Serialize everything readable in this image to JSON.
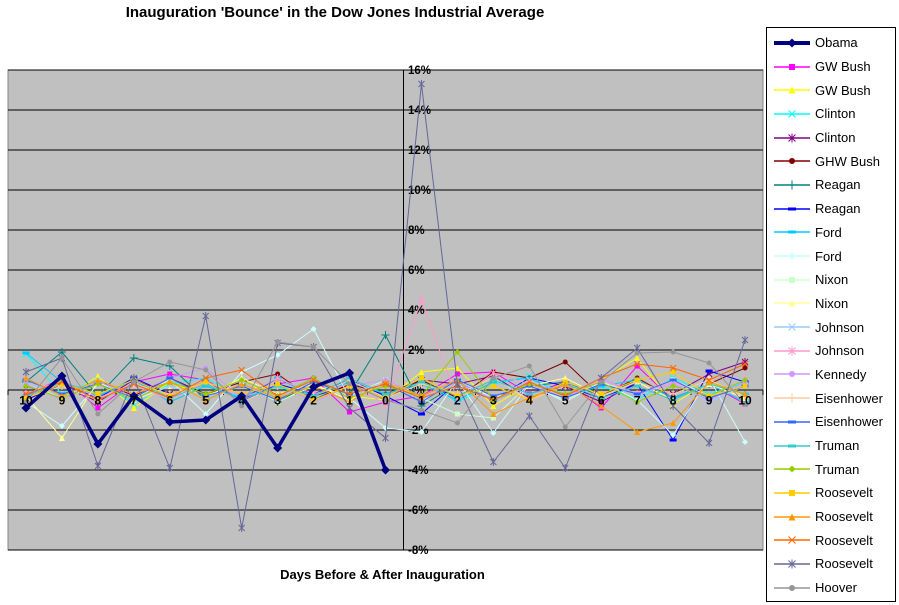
{
  "chart_data": {
    "type": "line",
    "title": "Inauguration 'Bounce' in the Dow Jones Industrial Average",
    "xlabel": "Days Before & After Inauguration",
    "ylabel": "",
    "ylim": [
      -8,
      16
    ],
    "grid": true,
    "legend_position": "right",
    "plot_bg_color": "#C0C0C0",
    "gridline_color": "#000000",
    "days": [
      -10,
      -9,
      -8,
      -7,
      -6,
      -5,
      -4,
      -3,
      -2,
      -1,
      0,
      1,
      2,
      3,
      4,
      5,
      6,
      7,
      8,
      9,
      10
    ],
    "x_tick_labels": [
      "10",
      "9",
      "8",
      "7",
      "6",
      "5",
      "4",
      "3",
      "2",
      "1",
      "0",
      "1",
      "2",
      "3",
      "4",
      "5",
      "6",
      "7",
      "8",
      "9",
      "10"
    ],
    "y_tick_values": [
      16,
      14,
      12,
      10,
      8,
      6,
      4,
      2,
      0,
      -2,
      -4,
      -6,
      -8
    ],
    "y_tick_labels": [
      "16%",
      "14%",
      "12%",
      "10%",
      "8%",
      "6%",
      "4%",
      "2%",
      "0%",
      "-2%",
      "-4%",
      "-6%",
      "-8%"
    ],
    "series": [
      {
        "name": "Obama",
        "color": "#000080",
        "marker": "diamond",
        "line_width": 3.5,
        "values": [
          -0.9,
          0.7,
          -2.7,
          -0.3,
          -1.6,
          -1.5,
          -0.3,
          -2.9,
          0.15,
          0.85,
          -4.0,
          null,
          null,
          null,
          null,
          null,
          null,
          null,
          null,
          null,
          null
        ]
      },
      {
        "name": "GW Bush",
        "color": "#FF00FF",
        "marker": "square",
        "line_width": 1,
        "values": [
          -0.3,
          0.6,
          -0.9,
          0.4,
          0.8,
          0.5,
          -0.5,
          0.3,
          0.6,
          -1.1,
          -0.6,
          -0.3,
          0.8,
          0.9,
          -0.2,
          0.4,
          -0.9,
          1.2,
          -0.5,
          0.3,
          -0.7
        ]
      },
      {
        "name": "GW Bush",
        "color": "#FFFF00",
        "marker": "triangle",
        "line_width": 1,
        "values": [
          0.3,
          -0.5,
          0.7,
          -0.9,
          0.4,
          -0.3,
          0.6,
          -0.6,
          0.25,
          -0.3,
          -0.5,
          0.9,
          1.1,
          -0.8,
          0.3,
          -0.4,
          0.5,
          1.6,
          -0.7,
          0.4,
          -0.3
        ]
      },
      {
        "name": "Clinton",
        "color": "#00FFFF",
        "marker": "x",
        "line_width": 1,
        "values": [
          1.8,
          -0.2,
          0.5,
          -0.7,
          0.3,
          0.6,
          -0.4,
          0.2,
          -0.5,
          0.4,
          -0.2,
          0.5,
          -0.6,
          0.3,
          0.7,
          -0.3,
          0.2,
          -0.5,
          0.6,
          -0.2,
          0.4
        ]
      },
      {
        "name": "Clinton",
        "color": "#800080",
        "marker": "star",
        "line_width": 1,
        "values": [
          -0.4,
          0.3,
          -0.6,
          0.5,
          -0.2,
          0.4,
          -0.5,
          0.6,
          -0.3,
          0.2,
          -0.4,
          0.5,
          0.3,
          0.7,
          -0.4,
          0.2,
          -0.6,
          0.4,
          -0.2,
          0.8,
          1.4
        ]
      },
      {
        "name": "GHW Bush",
        "color": "#800000",
        "marker": "circle",
        "line_width": 1,
        "values": [
          0.2,
          -0.4,
          0.5,
          -0.3,
          0.6,
          -0.2,
          0.4,
          0.8,
          -0.5,
          0.3,
          -0.2,
          0.5,
          -0.4,
          0.9,
          0.6,
          1.4,
          -0.3,
          0.6,
          -0.4,
          0.3,
          1.1
        ]
      },
      {
        "name": "Reagan",
        "color": "#008080",
        "marker": "plus",
        "line_width": 1,
        "values": [
          0.4,
          1.9,
          -0.3,
          1.6,
          1.2,
          -0.5,
          0.3,
          -0.6,
          0.4,
          -0.2,
          2.75,
          -0.8,
          0.3,
          -0.5,
          0.2,
          0.4,
          -0.3,
          0.5,
          -0.4,
          0.3,
          -0.2
        ]
      },
      {
        "name": "Reagan",
        "color": "#0000FF",
        "marker": "dash",
        "line_width": 1,
        "values": [
          -0.5,
          0.3,
          -0.4,
          0.6,
          -0.2,
          0.4,
          -0.6,
          0.3,
          -0.2,
          0.5,
          -0.3,
          -1.2,
          0.4,
          -0.5,
          0.6,
          0.2,
          -0.4,
          0.3,
          -2.5,
          0.95,
          0.4
        ]
      },
      {
        "name": "Ford",
        "color": "#00CCFF",
        "marker": "dash",
        "line_width": 1,
        "values": [
          1.85,
          0.4,
          -0.3,
          0.5,
          -0.6,
          0.2,
          -0.4,
          0.6,
          -0.3,
          0.4,
          -0.2,
          0.3,
          -0.5,
          0.4,
          0.6,
          -0.3,
          0.2,
          0.5,
          -0.4,
          0.3,
          -0.6
        ]
      },
      {
        "name": "Ford",
        "color": "#CCFFFF",
        "marker": "diamond",
        "line_width": 1,
        "values": [
          -0.6,
          -1.8,
          0.3,
          -0.4,
          0.5,
          -1.2,
          0.9,
          1.75,
          3.05,
          -0.4,
          -1.9,
          -2.1,
          0.5,
          -2.15,
          0.3,
          -0.6,
          0.4,
          -0.5,
          -2.25,
          0.6,
          -2.6
        ]
      },
      {
        "name": "Nixon",
        "color": "#CCFFCC",
        "marker": "square",
        "line_width": 1,
        "values": [
          0.3,
          -0.4,
          0.5,
          -0.2,
          0.4,
          -0.5,
          0.3,
          -0.6,
          0.2,
          -0.3,
          0.5,
          -0.4,
          -1.2,
          -1.4,
          0.3,
          -0.5,
          0.4,
          -0.2,
          0.5,
          -0.3,
          0.2
        ]
      },
      {
        "name": "Nixon",
        "color": "#FFFF99",
        "marker": "triangle",
        "line_width": 1,
        "values": [
          -0.3,
          -2.4,
          0.4,
          -0.5,
          0.2,
          -0.4,
          0.6,
          -0.2,
          0.3,
          -0.5,
          0.4,
          -0.3,
          0.5,
          -0.4,
          0.2,
          0.6,
          -0.3,
          0.4,
          -0.5,
          0.3,
          -0.4
        ]
      },
      {
        "name": "Johnson",
        "color": "#99CCFF",
        "marker": "x",
        "line_width": 1,
        "values": [
          0.4,
          -0.3,
          0.5,
          -0.6,
          0.2,
          -0.4,
          0.3,
          -0.5,
          0.6,
          -0.2,
          0.4,
          -0.5,
          0.3,
          -0.4,
          0.5,
          -0.2,
          0.6,
          -0.3,
          0.4,
          -0.6,
          0.2
        ]
      },
      {
        "name": "Johnson",
        "color": "#FF99CC",
        "marker": "star",
        "line_width": 1,
        "values": [
          -0.2,
          0.5,
          -0.4,
          0.3,
          -0.5,
          0.4,
          -0.3,
          0.6,
          -0.2,
          0.3,
          -0.7,
          4.5,
          -0.5,
          0.85,
          0.3,
          -0.4,
          0.5,
          -0.2,
          0.4,
          -0.3,
          0.5
        ]
      },
      {
        "name": "Kennedy",
        "color": "#CC99FF",
        "marker": "circle",
        "line_width": 1,
        "values": [
          0.3,
          -0.5,
          0.4,
          -0.2,
          0.6,
          1.1,
          -0.4,
          0.3,
          -0.6,
          0.2,
          0.5,
          -0.3,
          0.4,
          -0.5,
          0.2,
          -0.4,
          0.6,
          -0.2,
          0.3,
          -0.5,
          0.4
        ]
      },
      {
        "name": "Eisenhower",
        "color": "#FFCC99",
        "marker": "plus",
        "line_width": 1,
        "values": [
          -0.4,
          0.2,
          -0.5,
          0.3,
          -0.2,
          0.4,
          -0.6,
          0.2,
          -0.3,
          0.5,
          -0.4,
          0.3,
          -0.2,
          0.6,
          -0.5,
          0.2,
          -0.3,
          0.4,
          -0.2,
          0.5,
          -0.3
        ]
      },
      {
        "name": "Eisenhower",
        "color": "#3366FF",
        "marker": "dash",
        "line_width": 1,
        "values": [
          0.5,
          -0.2,
          0.3,
          -0.4,
          0.6,
          -0.3,
          0.2,
          -0.5,
          0.4,
          -0.2,
          0.3,
          -0.6,
          0.5,
          -0.3,
          0.2,
          -0.4,
          0.3,
          -0.2,
          0.5,
          -0.4,
          0.2
        ]
      },
      {
        "name": "Truman",
        "color": "#33CCCC",
        "marker": "dash",
        "line_width": 1,
        "values": [
          -0.3,
          0.4,
          -0.2,
          0.5,
          -0.4,
          0.3,
          -0.5,
          0.2,
          -0.3,
          0.6,
          -0.2,
          0.4,
          -0.3,
          0.5,
          -0.2,
          0.3,
          -0.4,
          0.2,
          -0.5,
          0.3,
          -0.2
        ]
      },
      {
        "name": "Truman",
        "color": "#99CC00",
        "marker": "diamond",
        "line_width": 1,
        "values": [
          0.2,
          -0.4,
          0.3,
          -0.5,
          0.4,
          -0.2,
          0.5,
          -0.3,
          0.6,
          -0.4,
          0.2,
          -0.3,
          1.9,
          -0.5,
          0.3,
          -0.2,
          0.4,
          -0.6,
          0.2,
          -0.3,
          0.5
        ]
      },
      {
        "name": "Roosevelt",
        "color": "#FFCC00",
        "marker": "square",
        "line_width": 1,
        "values": [
          -0.4,
          0.3,
          -0.2,
          0.5,
          -0.3,
          0.4,
          -0.2,
          0.3,
          -0.5,
          0.2,
          -0.4,
          0.6,
          -0.3,
          0.2,
          -0.5,
          0.4,
          -0.2,
          0.5,
          0.9,
          -0.3,
          0.2
        ]
      },
      {
        "name": "Roosevelt",
        "color": "#FF9900",
        "marker": "triangle",
        "line_width": 1,
        "values": [
          0.6,
          -0.3,
          0.5,
          -0.2,
          0.4,
          -0.5,
          0.3,
          -0.4,
          0.2,
          -0.6,
          0.4,
          -0.3,
          0.5,
          -1.2,
          -0.4,
          0.3,
          -0.8,
          -2.1,
          -1.65,
          0.4,
          -0.2
        ]
      },
      {
        "name": "Roosevelt",
        "color": "#FF6600",
        "marker": "x",
        "line_width": 1,
        "values": [
          -0.2,
          0.4,
          -0.5,
          0.3,
          -0.4,
          0.6,
          1.0,
          -0.3,
          0.5,
          -0.2,
          0.3,
          -0.4,
          0.2,
          -0.5,
          0.4,
          -0.3,
          0.6,
          1.3,
          1.1,
          0.5,
          1.3
        ]
      },
      {
        "name": "Roosevelt",
        "color": "#666699",
        "marker": "star",
        "line_width": 1,
        "values": [
          0.9,
          1.6,
          -3.8,
          0.6,
          -3.9,
          3.7,
          -6.9,
          2.35,
          2.15,
          -0.9,
          -2.4,
          15.3,
          0.3,
          -3.6,
          -1.3,
          -3.9,
          0.6,
          2.1,
          -0.8,
          -2.65,
          2.5
        ]
      },
      {
        "name": "Hoover",
        "color": "#969696",
        "marker": "circle",
        "line_width": 1,
        "values": [
          -0.6,
          1.6,
          -1.2,
          0.4,
          1.4,
          1.0,
          -0.8,
          2.4,
          2.15,
          0.3,
          -0.5,
          -1.0,
          -1.65,
          0.6,
          1.2,
          -1.85,
          0.4,
          1.85,
          1.9,
          1.35,
          -0.7
        ]
      }
    ]
  }
}
